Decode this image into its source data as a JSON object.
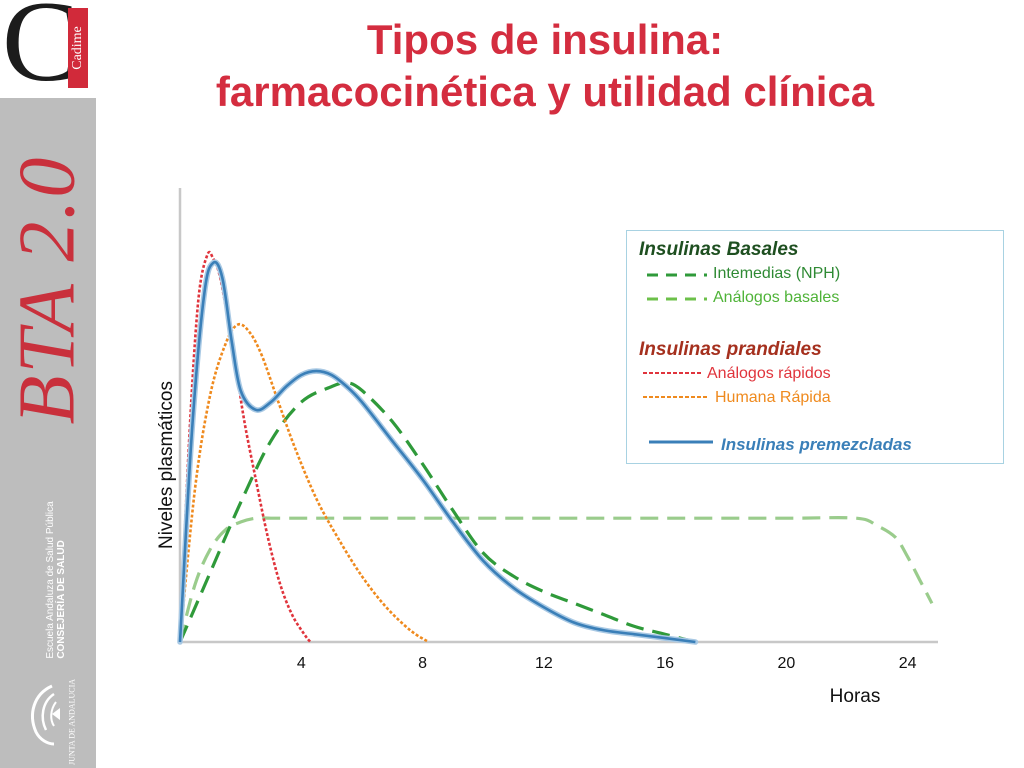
{
  "slide": {
    "title_line1": "Tipos de insulina:",
    "title_line2": "farmacocinética y utilidad clínica"
  },
  "branding": {
    "logo_letter": "C",
    "logo_word": "Cadime",
    "bta_mark": "BTA 2.0",
    "institution_line1": "Escuela Andaluza de Salud Pública",
    "institution_line2": "CONSEJERÍA DE SALUD",
    "junta": "JUNTA DE ANDALUCIA",
    "accent_color": "#d12a3a",
    "sidebar_color": "#bdbdbd"
  },
  "legend": {
    "basal_header": "Insulinas Basales",
    "basal_nph": "Intemedias (NPH)",
    "basal_analog": "Análogos basales",
    "prandial_header": "Insulinas prandiales",
    "prandial_rapid_analog": "Análogos rápidos",
    "prandial_human_rapid": "Humana Rápida",
    "premixed": "Insulinas premezcladas"
  },
  "chart_data": {
    "type": "line",
    "xlabel": "Horas",
    "ylabel": "Niveles plasmáticos",
    "xlim": [
      0,
      25
    ],
    "ylim": [
      0,
      100
    ],
    "xticks": [
      4,
      8,
      12,
      16,
      20,
      24
    ],
    "grid": false,
    "legend_position": "top-right",
    "series": [
      {
        "name": "Análogos rápidos",
        "color": "#e0343c",
        "style": "dotted",
        "x": [
          0,
          0.3,
          0.6,
          0.9,
          1.1,
          1.3,
          1.5,
          1.8,
          2.1,
          2.5,
          2.9,
          3.3,
          3.7,
          4.1,
          4.3
        ],
        "y": [
          0,
          52,
          88,
          100,
          99,
          95,
          87,
          74,
          58,
          42,
          27,
          15,
          7,
          2,
          0
        ]
      },
      {
        "name": "Humana Rápida",
        "color": "#ef8a1e",
        "style": "dotted",
        "x": [
          0,
          0.5,
          1.0,
          1.5,
          1.9,
          2.3,
          2.7,
          3.2,
          3.8,
          4.5,
          5.2,
          6.0,
          6.8,
          7.6,
          8.2
        ],
        "y": [
          0,
          40,
          64,
          77,
          82,
          80,
          74,
          63,
          50,
          37,
          27,
          17,
          9,
          3,
          0
        ]
      },
      {
        "name": "Insulinas premezcladas",
        "color": "#3a7fb8",
        "style": "solid",
        "x": [
          0,
          0.4,
          0.8,
          1.1,
          1.4,
          1.7,
          2.0,
          2.5,
          3.0,
          3.5,
          4.0,
          4.5,
          5.0,
          5.5,
          6.0,
          7.0,
          8.0,
          9.0,
          10.0,
          11.0,
          12.0,
          13.0,
          14.0,
          15.0,
          16.0,
          17.0
        ],
        "y": [
          0,
          55,
          90,
          98,
          94,
          78,
          65,
          60,
          62,
          66,
          69,
          70,
          69,
          66,
          62,
          52,
          42,
          31,
          21,
          14,
          9,
          5,
          3,
          2,
          1,
          0
        ]
      },
      {
        "name": "Intemedias (NPH)",
        "color": "#2f9a3a",
        "style": "dashed",
        "x": [
          0,
          1,
          2,
          3,
          4,
          5,
          5.5,
          6,
          7,
          8,
          9,
          10,
          11,
          12,
          13,
          14,
          15,
          16,
          17
        ],
        "y": [
          0,
          18,
          36,
          52,
          62,
          66,
          67,
          65,
          57,
          46,
          34,
          23,
          17,
          13,
          10,
          7,
          4,
          2,
          0
        ]
      },
      {
        "name": "Análogos basales",
        "color": "#9acc8c",
        "style": "dashed",
        "x": [
          0,
          0.5,
          1.0,
          1.5,
          2.0,
          2.5,
          3.0,
          4,
          8,
          12,
          16,
          20,
          22.3,
          23.0,
          23.6,
          24.0,
          24.4,
          24.8
        ],
        "y": [
          0,
          15,
          24,
          29,
          31,
          32,
          32,
          32,
          32,
          32,
          32,
          32,
          32,
          30,
          27,
          22,
          16,
          10
        ]
      }
    ]
  }
}
